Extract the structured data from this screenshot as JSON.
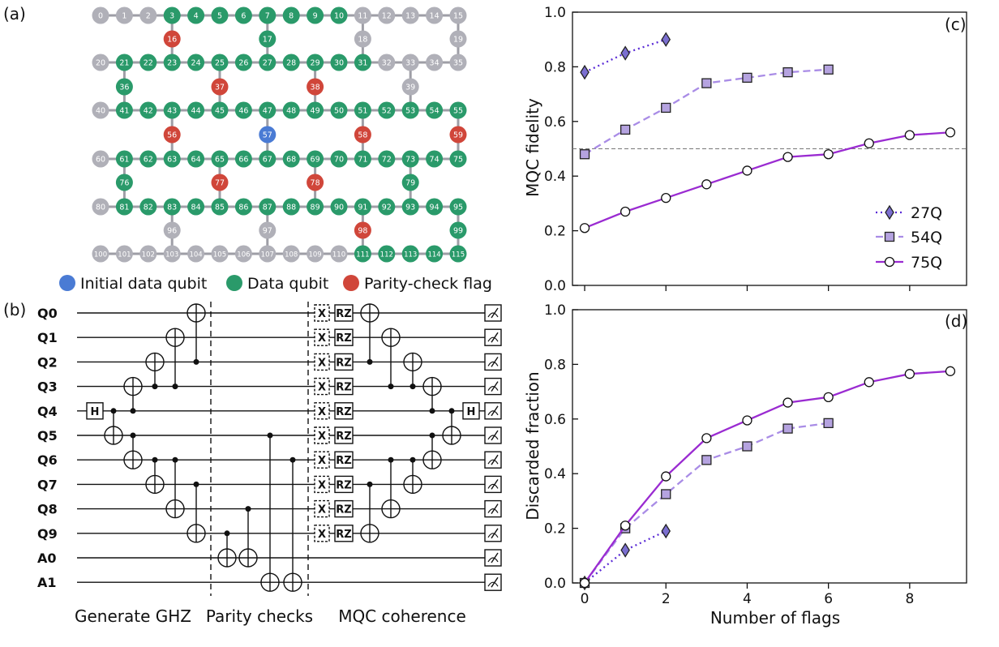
{
  "panel_a": {
    "label": "(a)",
    "legend": {
      "initial": "Initial data qubit",
      "data": "Data qubit",
      "flag": "Parity-check flag"
    },
    "colors": {
      "initial": "#4a7bd4",
      "data": "#2a9a6a",
      "flag": "#d0463a",
      "idle": "#b0b0b8",
      "edge": "#9e9ea6"
    },
    "nodes": [
      {
        "id": "0",
        "s": "idle"
      },
      {
        "id": "1",
        "s": "idle"
      },
      {
        "id": "2",
        "s": "idle"
      },
      {
        "id": "3",
        "s": "data"
      },
      {
        "id": "4",
        "s": "data"
      },
      {
        "id": "5",
        "s": "data"
      },
      {
        "id": "6",
        "s": "data"
      },
      {
        "id": "7",
        "s": "data"
      },
      {
        "id": "8",
        "s": "data"
      },
      {
        "id": "9",
        "s": "data"
      },
      {
        "id": "10",
        "s": "data"
      },
      {
        "id": "11",
        "s": "idle"
      },
      {
        "id": "12",
        "s": "idle"
      },
      {
        "id": "13",
        "s": "idle"
      },
      {
        "id": "14",
        "s": "idle"
      },
      {
        "id": "15",
        "s": "idle"
      },
      {
        "id": "16",
        "s": "flag"
      },
      {
        "id": "17",
        "s": "data"
      },
      {
        "id": "18",
        "s": "idle"
      },
      {
        "id": "19",
        "s": "idle"
      },
      {
        "id": "20",
        "s": "idle"
      },
      {
        "id": "21",
        "s": "data"
      },
      {
        "id": "22",
        "s": "data"
      },
      {
        "id": "23",
        "s": "data"
      },
      {
        "id": "24",
        "s": "data"
      },
      {
        "id": "25",
        "s": "data"
      },
      {
        "id": "26",
        "s": "data"
      },
      {
        "id": "27",
        "s": "data"
      },
      {
        "id": "28",
        "s": "data"
      },
      {
        "id": "29",
        "s": "data"
      },
      {
        "id": "30",
        "s": "data"
      },
      {
        "id": "31",
        "s": "data"
      },
      {
        "id": "32",
        "s": "idle"
      },
      {
        "id": "33",
        "s": "idle"
      },
      {
        "id": "34",
        "s": "idle"
      },
      {
        "id": "35",
        "s": "idle"
      },
      {
        "id": "36",
        "s": "data"
      },
      {
        "id": "37",
        "s": "flag"
      },
      {
        "id": "38",
        "s": "flag"
      },
      {
        "id": "39",
        "s": "idle"
      },
      {
        "id": "40",
        "s": "idle"
      },
      {
        "id": "41",
        "s": "data"
      },
      {
        "id": "42",
        "s": "data"
      },
      {
        "id": "43",
        "s": "data"
      },
      {
        "id": "44",
        "s": "data"
      },
      {
        "id": "45",
        "s": "data"
      },
      {
        "id": "46",
        "s": "data"
      },
      {
        "id": "47",
        "s": "data"
      },
      {
        "id": "48",
        "s": "data"
      },
      {
        "id": "49",
        "s": "data"
      },
      {
        "id": "50",
        "s": "data"
      },
      {
        "id": "51",
        "s": "data"
      },
      {
        "id": "52",
        "s": "data"
      },
      {
        "id": "53",
        "s": "data"
      },
      {
        "id": "54",
        "s": "data"
      },
      {
        "id": "55",
        "s": "data"
      },
      {
        "id": "56",
        "s": "flag"
      },
      {
        "id": "57",
        "s": "initial"
      },
      {
        "id": "58",
        "s": "flag"
      },
      {
        "id": "59",
        "s": "flag"
      },
      {
        "id": "60",
        "s": "idle"
      },
      {
        "id": "61",
        "s": "data"
      },
      {
        "id": "62",
        "s": "data"
      },
      {
        "id": "63",
        "s": "data"
      },
      {
        "id": "64",
        "s": "data"
      },
      {
        "id": "65",
        "s": "data"
      },
      {
        "id": "66",
        "s": "data"
      },
      {
        "id": "67",
        "s": "data"
      },
      {
        "id": "68",
        "s": "data"
      },
      {
        "id": "69",
        "s": "data"
      },
      {
        "id": "70",
        "s": "data"
      },
      {
        "id": "71",
        "s": "data"
      },
      {
        "id": "72",
        "s": "data"
      },
      {
        "id": "73",
        "s": "data"
      },
      {
        "id": "74",
        "s": "data"
      },
      {
        "id": "75",
        "s": "data"
      },
      {
        "id": "76",
        "s": "data"
      },
      {
        "id": "77",
        "s": "flag"
      },
      {
        "id": "78",
        "s": "flag"
      },
      {
        "id": "79",
        "s": "data"
      },
      {
        "id": "80",
        "s": "idle"
      },
      {
        "id": "81",
        "s": "data"
      },
      {
        "id": "82",
        "s": "data"
      },
      {
        "id": "83",
        "s": "data"
      },
      {
        "id": "84",
        "s": "data"
      },
      {
        "id": "85",
        "s": "data"
      },
      {
        "id": "86",
        "s": "data"
      },
      {
        "id": "87",
        "s": "data"
      },
      {
        "id": "88",
        "s": "data"
      },
      {
        "id": "89",
        "s": "data"
      },
      {
        "id": "90",
        "s": "data"
      },
      {
        "id": "91",
        "s": "data"
      },
      {
        "id": "92",
        "s": "data"
      },
      {
        "id": "93",
        "s": "data"
      },
      {
        "id": "94",
        "s": "data"
      },
      {
        "id": "95",
        "s": "data"
      },
      {
        "id": "96",
        "s": "idle"
      },
      {
        "id": "97",
        "s": "idle"
      },
      {
        "id": "98",
        "s": "flag"
      },
      {
        "id": "99",
        "s": "data"
      },
      {
        "id": "100",
        "s": "idle"
      },
      {
        "id": "101",
        "s": "idle"
      },
      {
        "id": "102",
        "s": "idle"
      },
      {
        "id": "103",
        "s": "idle"
      },
      {
        "id": "104",
        "s": "idle"
      },
      {
        "id": "105",
        "s": "idle"
      },
      {
        "id": "106",
        "s": "idle"
      },
      {
        "id": "107",
        "s": "idle"
      },
      {
        "id": "108",
        "s": "idle"
      },
      {
        "id": "109",
        "s": "idle"
      },
      {
        "id": "110",
        "s": "idle"
      },
      {
        "id": "111",
        "s": "data"
      },
      {
        "id": "112",
        "s": "data"
      },
      {
        "id": "113",
        "s": "data"
      },
      {
        "id": "114",
        "s": "data"
      },
      {
        "id": "115",
        "s": "data"
      }
    ]
  },
  "panel_b": {
    "label": "(b)",
    "qubits": [
      "Q0",
      "Q1",
      "Q2",
      "Q3",
      "Q4",
      "Q5",
      "Q6",
      "Q7",
      "Q8",
      "Q9",
      "A0",
      "A1"
    ],
    "h_label": "H",
    "x_label": "X",
    "rz_label": "RZ",
    "sections": [
      "Generate GHZ",
      "Parity checks",
      "MQC coherence"
    ]
  },
  "chart_data": [
    {
      "panel": "(c)",
      "type": "line",
      "xlabel": "",
      "ylabel": "MQC fidelity",
      "xlim": [
        -0.3,
        9.4
      ],
      "ylim": [
        0.0,
        1.0
      ],
      "xticks": [
        0,
        2,
        4,
        6,
        8
      ],
      "xtick_labels_shown": false,
      "yticks": [
        "0.0",
        "0.2",
        "0.4",
        "0.6",
        "0.8",
        "1.0"
      ],
      "hline": 0.5,
      "legend_position": "bottom-right",
      "series": [
        {
          "name": "27Q",
          "x": [
            0,
            1,
            2
          ],
          "y": [
            0.78,
            0.85,
            0.9
          ],
          "marker": "diamond",
          "style": "dotted",
          "color": "#5a2bd6",
          "fill": "#7b6fd0"
        },
        {
          "name": "54Q",
          "x": [
            0,
            1,
            2,
            3,
            4,
            5,
            6
          ],
          "y": [
            0.48,
            0.57,
            0.65,
            0.74,
            0.76,
            0.78,
            0.79
          ],
          "marker": "square",
          "style": "dashed",
          "color": "#a98ce6",
          "fill": "#b5a3e0"
        },
        {
          "name": "75Q",
          "x": [
            0,
            1,
            2,
            3,
            4,
            5,
            6,
            7,
            8,
            9
          ],
          "y": [
            0.21,
            0.27,
            0.32,
            0.37,
            0.42,
            0.47,
            0.48,
            0.52,
            0.55,
            0.56
          ],
          "marker": "circle",
          "style": "solid",
          "color": "#9a2bd1",
          "fill": "#ffffff"
        }
      ]
    },
    {
      "panel": "(d)",
      "type": "line",
      "xlabel": "Number of flags",
      "ylabel": "Discarded fraction",
      "xlim": [
        -0.3,
        9.4
      ],
      "ylim": [
        0.0,
        1.0
      ],
      "xticks": [
        "0",
        "2",
        "4",
        "6",
        "8"
      ],
      "yticks": [
        "0.0",
        "0.2",
        "0.4",
        "0.6",
        "0.8",
        "1.0"
      ],
      "series": [
        {
          "name": "27Q",
          "x": [
            0,
            1,
            2
          ],
          "y": [
            0.0,
            0.12,
            0.19
          ],
          "marker": "diamond",
          "style": "dotted",
          "color": "#5a2bd6",
          "fill": "#7b6fd0"
        },
        {
          "name": "54Q",
          "x": [
            0,
            1,
            2,
            3,
            4,
            5,
            6
          ],
          "y": [
            0.0,
            0.2,
            0.325,
            0.45,
            0.5,
            0.565,
            0.585
          ],
          "marker": "square",
          "style": "dashed",
          "color": "#a98ce6",
          "fill": "#b5a3e0"
        },
        {
          "name": "75Q",
          "x": [
            0,
            1,
            2,
            3,
            4,
            5,
            6,
            7,
            8,
            9
          ],
          "y": [
            0.0,
            0.21,
            0.39,
            0.53,
            0.595,
            0.66,
            0.68,
            0.735,
            0.765,
            0.775
          ],
          "marker": "circle",
          "style": "solid",
          "color": "#9a2bd1",
          "fill": "#ffffff"
        }
      ]
    }
  ]
}
